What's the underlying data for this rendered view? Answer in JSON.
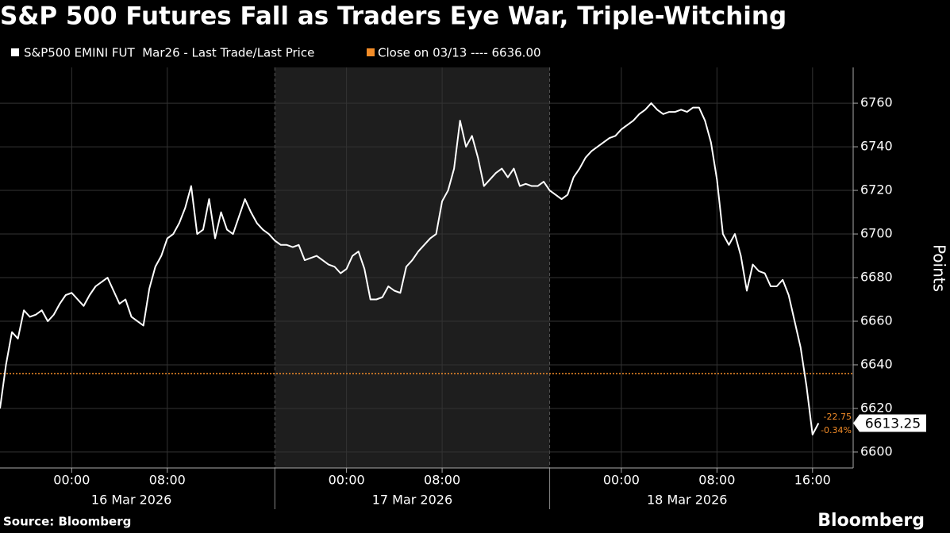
{
  "chart_data": {
    "type": "line",
    "title": "S&P 500 Futures Fall as Traders Eye War, Triple-Witching",
    "y_label": "Points",
    "source": "Source: Bloomberg",
    "brand": "Bloomberg",
    "x": [
      -6,
      -5.5,
      -5,
      -4.5,
      -4,
      -3.5,
      -3,
      -2.5,
      -2,
      -1.5,
      -1,
      -0.5,
      0,
      0.5,
      1,
      1.5,
      2,
      2.5,
      3,
      3.5,
      4,
      4.5,
      5,
      5.5,
      6,
      6.5,
      7,
      7.5,
      8,
      8.5,
      9,
      9.5,
      10,
      10.5,
      11,
      11.5,
      12,
      12.5,
      13,
      13.5,
      14,
      14.5,
      15,
      15.5,
      16,
      16.5,
      17,
      17.5,
      18,
      18.5,
      19,
      19.5,
      20,
      20.5,
      21,
      21.5,
      22,
      22.5,
      23,
      23.5,
      24,
      24.5,
      25,
      25.5,
      26,
      26.5,
      27,
      27.5,
      28,
      28.5,
      29,
      29.5,
      30,
      30.5,
      31,
      31.5,
      32,
      32.5,
      33,
      33.5,
      34,
      34.5,
      35,
      35.5,
      36,
      36.5,
      37,
      37.5,
      38,
      38.5,
      39,
      39.5,
      40,
      40.5,
      41,
      41.5,
      42,
      42.5,
      43,
      43.5,
      44,
      44.5,
      45,
      45.5,
      46,
      46.5,
      47,
      47.5,
      48,
      48.5,
      49,
      49.5,
      50,
      50.5,
      51,
      51.5,
      52,
      52.5,
      53,
      53.5,
      54,
      54.5,
      55,
      55.5,
      56,
      56.5,
      57,
      57.5,
      58,
      58.5,
      59,
      59.5,
      60,
      60.5,
      61,
      61.5,
      62,
      62.5
    ],
    "series": [
      {
        "name": "S&P500 EMINI FUT  Mar26 - Last Trade/Last Price",
        "color": "#ffffff",
        "values": [
          6620,
          6640,
          6655,
          6652,
          6665,
          6662,
          6663,
          6665,
          6660,
          6663,
          6668,
          6672,
          6673,
          6670,
          6667,
          6672,
          6676,
          6678,
          6680,
          6674,
          6668,
          6670,
          6662,
          6660,
          6658,
          6675,
          6685,
          6690,
          6698,
          6700,
          6705,
          6712,
          6722,
          6700,
          6702,
          6716,
          6698,
          6710,
          6702,
          6700,
          6708,
          6716,
          6710,
          6705,
          6702,
          6700,
          6697,
          6695,
          6695,
          6694,
          6695,
          6688,
          6689,
          6690,
          6688,
          6686,
          6685,
          6682,
          6684,
          6690,
          6692,
          6684,
          6670,
          6670,
          6671,
          6676,
          6674,
          6673,
          6685,
          6688,
          6692,
          6695,
          6698,
          6700,
          6715,
          6720,
          6730,
          6752,
          6740,
          6745,
          6735,
          6722,
          6725,
          6728,
          6730,
          6726,
          6730,
          6722,
          6723,
          6722,
          6722,
          6724,
          6720,
          6718,
          6716,
          6718,
          6726,
          6730,
          6735,
          6738,
          6740,
          6742,
          6744,
          6745,
          6748,
          6750,
          6752,
          6755,
          6757,
          6760,
          6757,
          6755,
          6756,
          6756,
          6757,
          6756,
          6758,
          6758,
          6752,
          6742,
          6725,
          6700,
          6695,
          6700,
          6690,
          6674,
          6686,
          6683,
          6682,
          6676,
          6676,
          6679,
          6672,
          6660,
          6648,
          6630,
          6608,
          6613.25
        ]
      }
    ],
    "reference_line": {
      "name": "Close on 03/13 ---- 6636.00",
      "value": 6636,
      "color": "#f28c28"
    },
    "annotations": [
      "-22.75",
      "-0.34%"
    ],
    "xlim": [
      -6,
      65.4
    ],
    "xticks": [
      {
        "value": 0,
        "label": "00:00"
      },
      {
        "value": 8,
        "label": "08:00"
      },
      {
        "value": 23,
        "label": "00:00"
      },
      {
        "value": 31,
        "label": "08:00"
      },
      {
        "value": 46,
        "label": "00:00"
      },
      {
        "value": 54,
        "label": "08:00"
      },
      {
        "value": 62,
        "label": "16:00"
      }
    ],
    "date_labels": [
      {
        "value": 5,
        "label": "16 Mar 2026"
      },
      {
        "value": 28.5,
        "label": "17 Mar 2026"
      },
      {
        "value": 51.5,
        "label": "18 Mar 2026"
      }
    ],
    "session_breaks": [
      17,
      40
    ],
    "ylim": [
      6592.7,
      6776.4
    ],
    "yticks": [
      6600,
      6620,
      6640,
      6660,
      6680,
      6700,
      6720,
      6740,
      6760
    ],
    "grid": true
  }
}
